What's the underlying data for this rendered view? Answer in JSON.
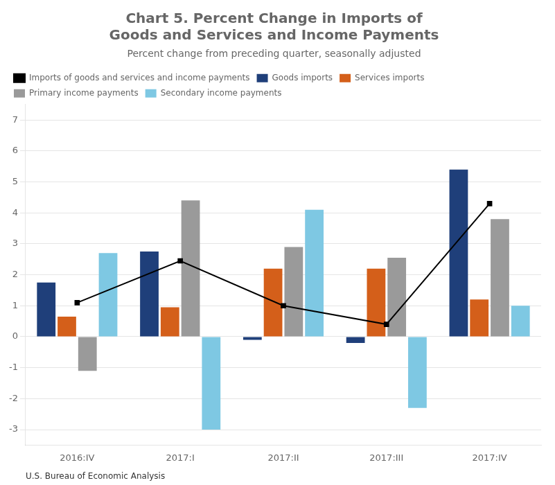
{
  "chart_data": {
    "type": "bar",
    "title": [
      "Chart 5. Percent Change in Imports of",
      "Goods and Services and Income Payments"
    ],
    "subtitle": "Percent change from preceding quarter, seasonally adjusted",
    "footnote": "U.S. Bureau of Economic Analysis",
    "categories": [
      "2016:IV",
      "2017:I",
      "2017:II",
      "2017:III",
      "2017:IV"
    ],
    "series": [
      {
        "name": "Goods imports",
        "color": "#1f3f7a",
        "values": [
          1.75,
          2.75,
          -0.1,
          -0.2,
          5.4
        ]
      },
      {
        "name": "Services imports",
        "color": "#d45f1a",
        "values": [
          0.65,
          0.95,
          2.2,
          2.2,
          1.2
        ]
      },
      {
        "name": "Primary income payments",
        "color": "#9a9a9a",
        "values": [
          -1.1,
          4.4,
          2.9,
          2.55,
          3.8
        ]
      },
      {
        "name": "Secondary income payments",
        "color": "#7ec8e3",
        "values": [
          2.7,
          -3.0,
          4.1,
          -2.3,
          1.0
        ]
      },
      {
        "name": "Imports of goods and services and income payments",
        "color": "#000000",
        "type": "line",
        "marker": "square",
        "values": [
          1.1,
          2.45,
          1.0,
          0.4,
          4.3
        ]
      }
    ],
    "ylim": [
      -3.5,
      7.5
    ],
    "yticks": [
      -3,
      -2,
      -1,
      0,
      1,
      2,
      3,
      4,
      5,
      6,
      7
    ],
    "grid": true,
    "legend": "upper left"
  }
}
